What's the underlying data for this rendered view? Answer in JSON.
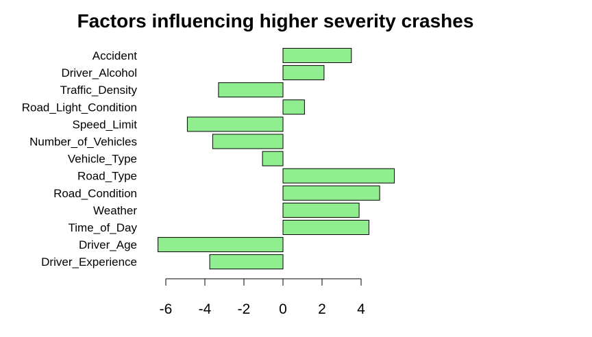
{
  "chart_data": {
    "type": "bar",
    "orientation": "horizontal",
    "title": "Factors influencing higher severity crashes",
    "xlabel": "",
    "ylabel": "",
    "categories": [
      "Accident",
      "Driver_Alcohol",
      "Traffic_Density",
      "Road_Light_Condition",
      "Speed_Limit",
      "Number_of_Vehicles",
      "Vehicle_Type",
      "Road_Type",
      "Road_Condition",
      "Weather",
      "Time_of_Day",
      "Driver_Age",
      "Driver_Experience"
    ],
    "values": [
      3.5,
      2.1,
      -3.3,
      1.1,
      -4.9,
      -3.6,
      -1.05,
      5.7,
      4.95,
      3.9,
      4.4,
      -6.4,
      -3.75
    ],
    "xlim": [
      -6.8,
      7.4
    ],
    "xticks": [
      -6,
      -4,
      -2,
      0,
      2,
      4
    ],
    "bar_color": "#90ee90",
    "bar_border_color": "#000000",
    "grid": false,
    "legend": "none"
  }
}
